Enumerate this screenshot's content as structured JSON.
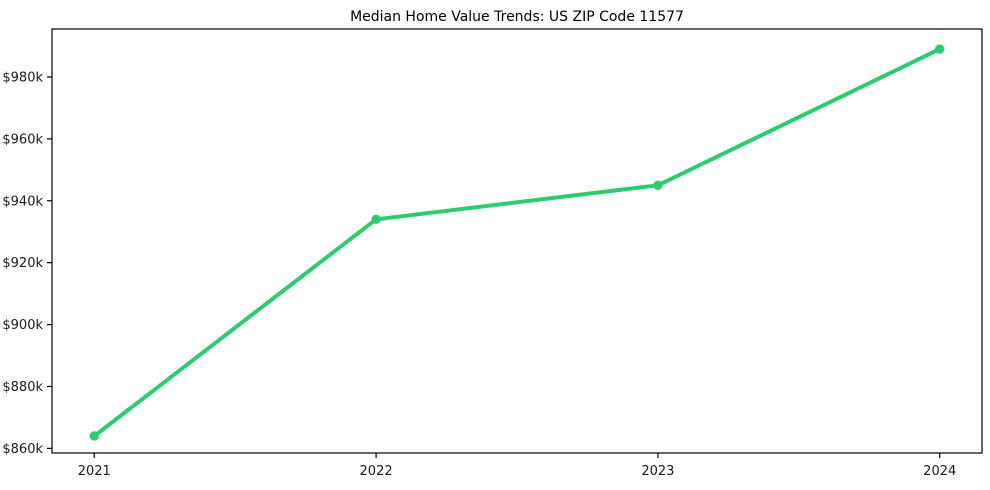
{
  "chart_data": {
    "type": "line",
    "title": "Median Home Value Trends: US ZIP Code 11577",
    "categories": [
      "2021",
      "2022",
      "2023",
      "2024"
    ],
    "x": [
      2021,
      2022,
      2023,
      2024
    ],
    "values": [
      864,
      934,
      945,
      989
    ],
    "value_unit_suffix": "k",
    "value_prefix": "$",
    "xlim": [
      2020.85,
      2024.15
    ],
    "ylim": [
      858.5,
      995.5
    ],
    "yticks": [
      860,
      880,
      900,
      920,
      940,
      960,
      980
    ],
    "ytick_labels": [
      "$860k",
      "$880k",
      "$900k",
      "$920k",
      "$940k",
      "$960k",
      "$980k"
    ],
    "grid": false,
    "legend": null,
    "line_color": "#2ecc71",
    "marker_color": "#2ecc71",
    "frame_color": "#000000",
    "line_width": 4,
    "marker_radius": 4.7
  }
}
